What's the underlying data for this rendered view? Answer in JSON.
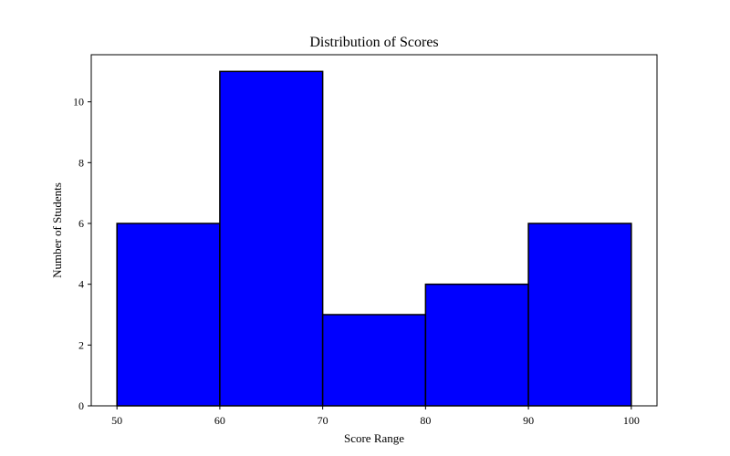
{
  "chart_data": {
    "type": "bar",
    "title": "Distribution of Scores",
    "xlabel": "Score Range",
    "ylabel": "Number of Students",
    "bins": [
      {
        "start": 50,
        "end": 60,
        "count": 6
      },
      {
        "start": 60,
        "end": 70,
        "count": 11
      },
      {
        "start": 70,
        "end": 80,
        "count": 3
      },
      {
        "start": 80,
        "end": 90,
        "count": 4
      },
      {
        "start": 90,
        "end": 100,
        "count": 6
      }
    ],
    "xticks": [
      50,
      60,
      70,
      80,
      90,
      100
    ],
    "yticks": [
      0,
      2,
      4,
      6,
      8,
      10
    ],
    "xlim": [
      47.5,
      102.5
    ],
    "ylim": [
      0,
      11.55
    ],
    "grid": false,
    "colors": {
      "bar_fill": "#0000ff",
      "bar_edge": "#000000"
    }
  }
}
